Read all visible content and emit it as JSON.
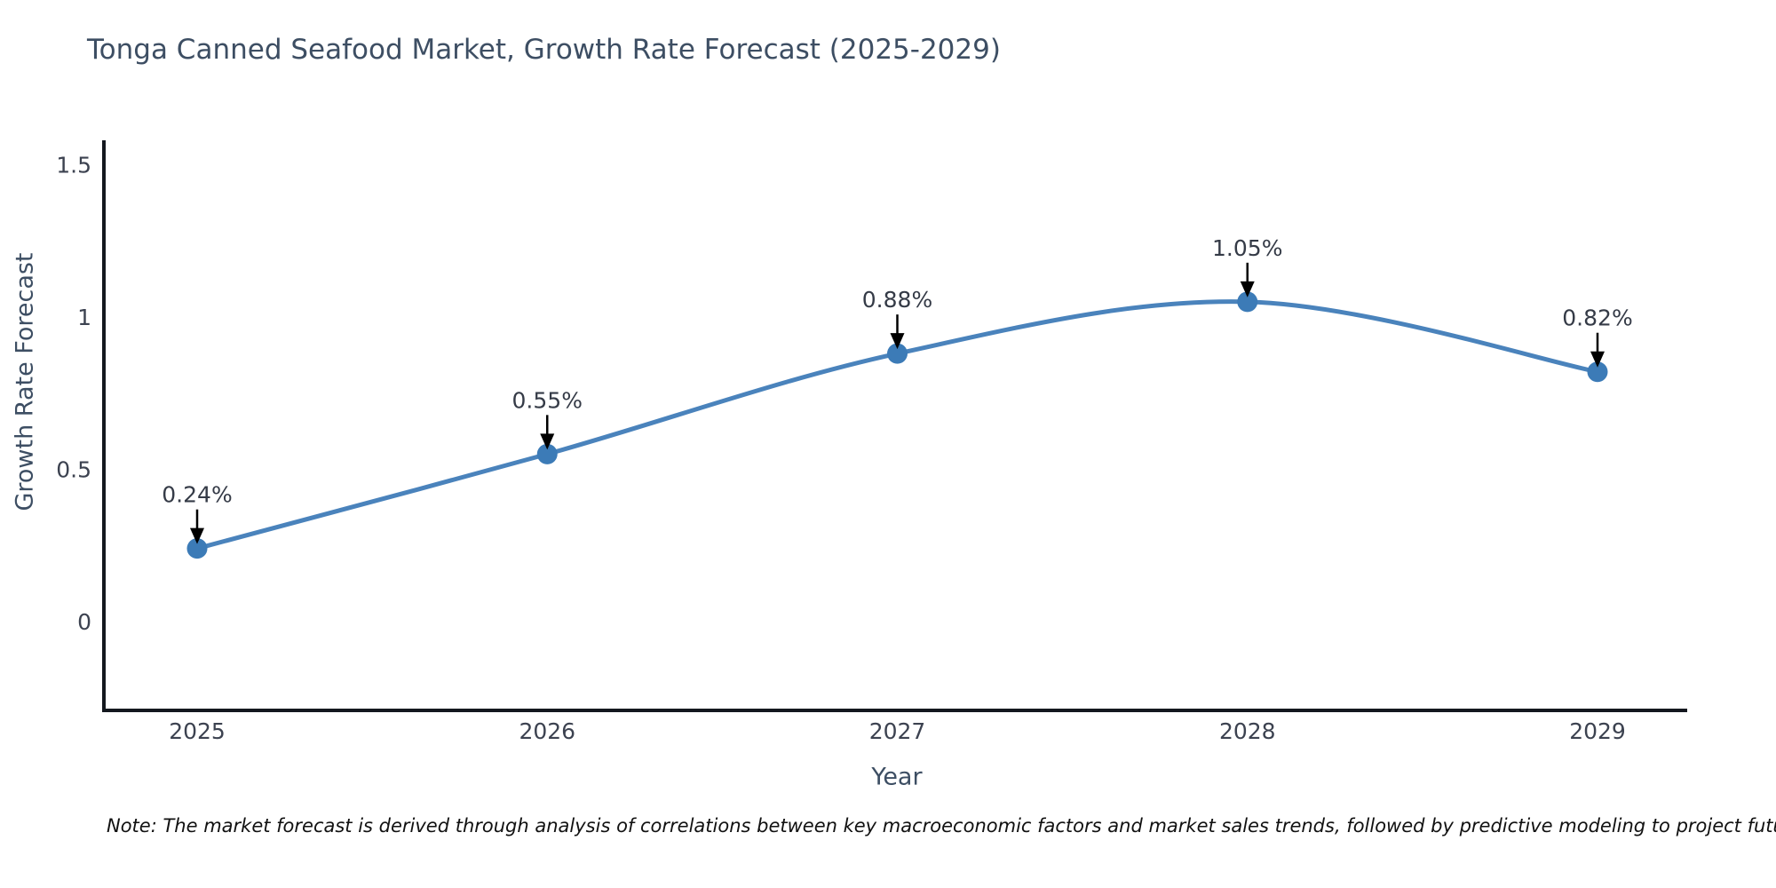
{
  "note": "Note: The market forecast is derived through analysis of correlations between key macroeconomic factors and market sales trends, followed by predictive modeling to project future sales",
  "chart_data": {
    "type": "line",
    "title": "Tonga Canned Seafood Market, Growth Rate Forecast (2025-2029)",
    "xlabel": "Year",
    "ylabel": "Growth Rate Forecast",
    "x": [
      "2025",
      "2026",
      "2027",
      "2028",
      "2029"
    ],
    "series": [
      {
        "name": "Growth Rate Forecast",
        "values": [
          0.24,
          0.55,
          0.88,
          1.05,
          0.82
        ]
      }
    ],
    "point_labels": [
      "0.24%",
      "0.55%",
      "0.88%",
      "1.05%",
      "0.82%"
    ],
    "yticks": [
      0,
      0.5,
      1,
      1.5
    ],
    "ytick_labels": [
      "0",
      "0.5",
      "1",
      "1.5"
    ],
    "ylim": [
      -0.29,
      1.58
    ],
    "grid": false,
    "legend": "none",
    "line_shape": "spline",
    "colors": {
      "line": "#4a83bc",
      "marker": "#3c7bb7",
      "axis": "#14181f",
      "arrow": "#000000",
      "title_text": "#3d4e63",
      "tick_text": "#3c4250",
      "annotation_text": "#353b47",
      "note_text": "#111111",
      "background": "#ffffff"
    }
  }
}
